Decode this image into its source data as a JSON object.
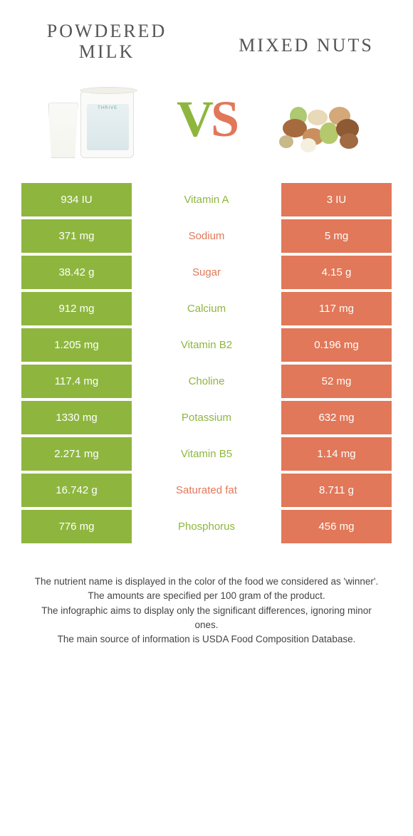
{
  "colors": {
    "left": "#8eb63f",
    "right": "#e17859",
    "body_text": "#444",
    "heading_text": "#555"
  },
  "header": {
    "left_title": "Powdered\nmilk",
    "right_title": "Mixed nuts",
    "vs_v": "V",
    "vs_s": "S"
  },
  "rows": [
    {
      "left": "934 IU",
      "name": "Vitamin A",
      "right": "3 IU",
      "winner": "left"
    },
    {
      "left": "371 mg",
      "name": "Sodium",
      "right": "5 mg",
      "winner": "right"
    },
    {
      "left": "38.42 g",
      "name": "Sugar",
      "right": "4.15 g",
      "winner": "right"
    },
    {
      "left": "912 mg",
      "name": "Calcium",
      "right": "117 mg",
      "winner": "left"
    },
    {
      "left": "1.205 mg",
      "name": "Vitamin B2",
      "right": "0.196 mg",
      "winner": "left"
    },
    {
      "left": "117.4 mg",
      "name": "Choline",
      "right": "52 mg",
      "winner": "left"
    },
    {
      "left": "1330 mg",
      "name": "Potassium",
      "right": "632 mg",
      "winner": "left"
    },
    {
      "left": "2.271 mg",
      "name": "Vitamin B5",
      "right": "1.14 mg",
      "winner": "left"
    },
    {
      "left": "16.742 g",
      "name": "Saturated fat",
      "right": "8.711 g",
      "winner": "right"
    },
    {
      "left": "776 mg",
      "name": "Phosphorus",
      "right": "456 mg",
      "winner": "left"
    }
  ],
  "footer": {
    "l1": "The nutrient name is displayed in the color of the food we considered as 'winner'.",
    "l2": "The amounts are specified per 100 gram of the product.",
    "l3": "The infographic aims to display only the significant differences, ignoring minor ones.",
    "l4": "The main source of information is USDA Food Composition Database."
  }
}
